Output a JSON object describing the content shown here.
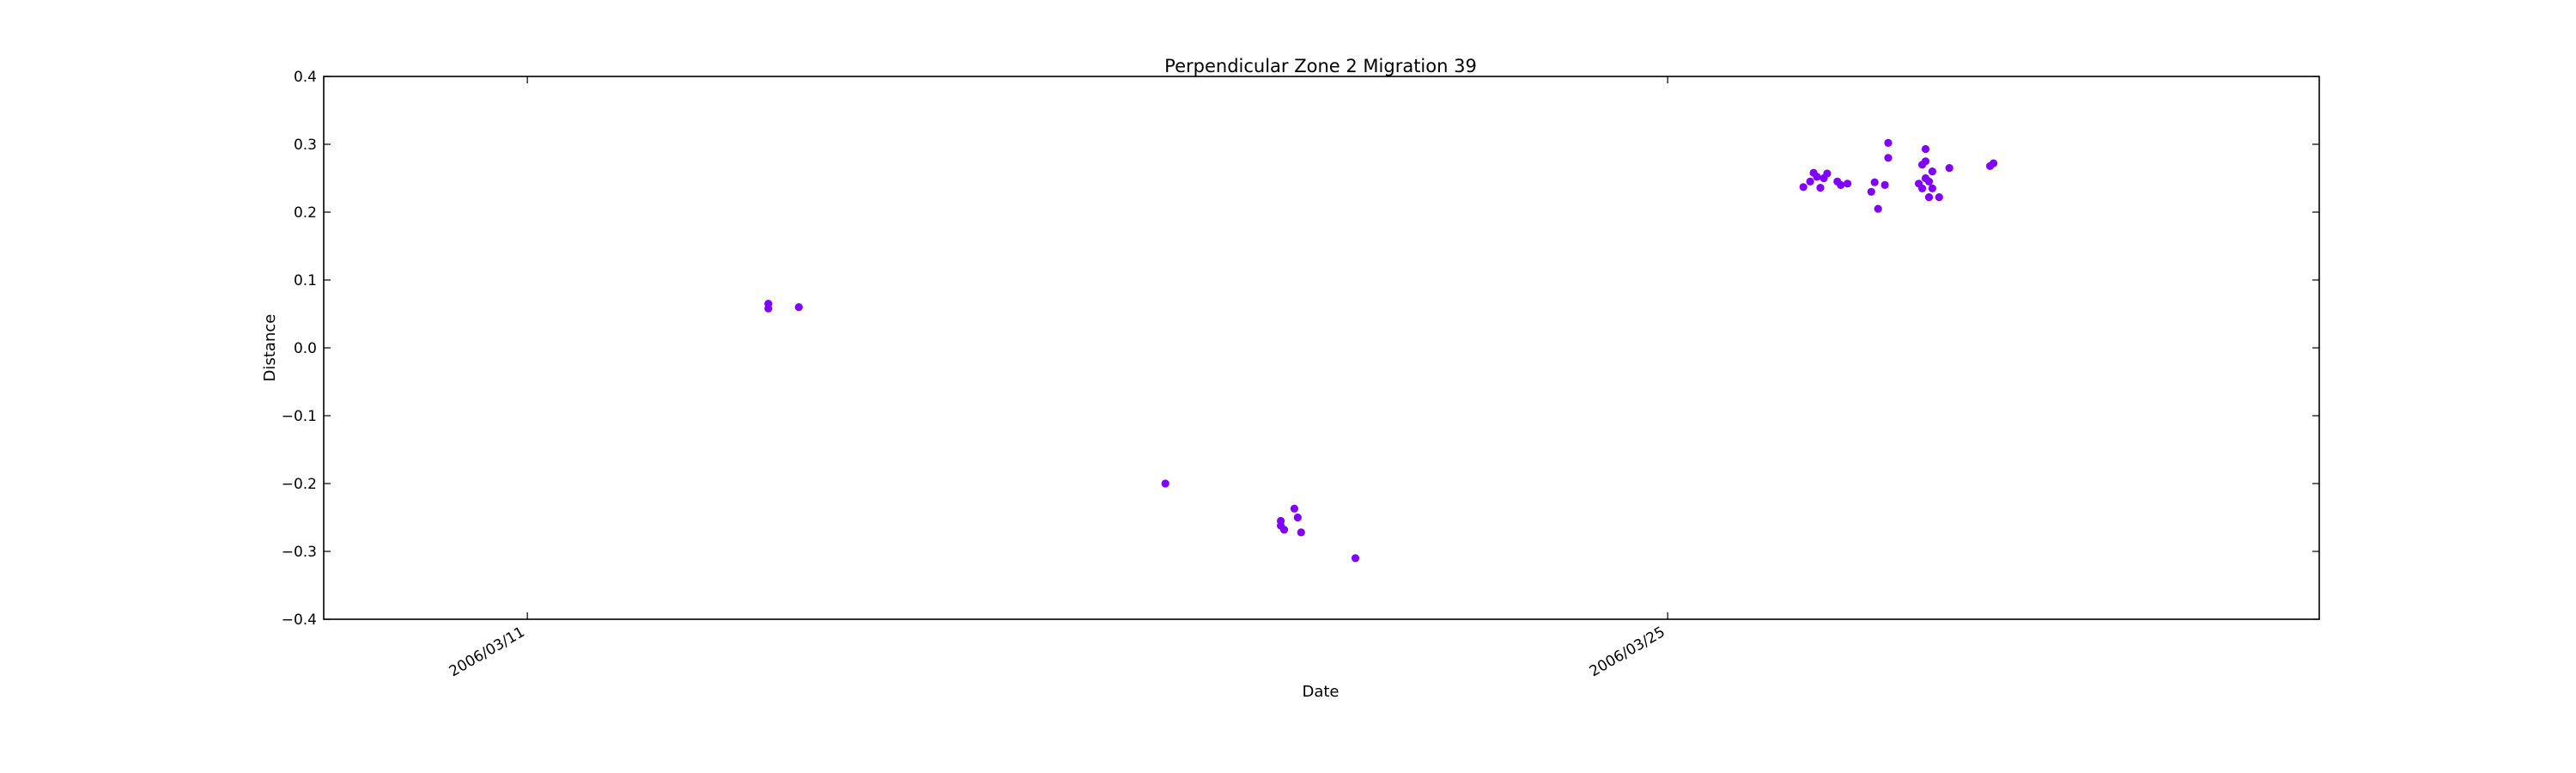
{
  "chart_data": {
    "type": "scatter",
    "title": "Perpendicular Zone 2 Migration 39",
    "xlabel": "Date",
    "ylabel": "Distance",
    "x_axis_type": "date",
    "xlim": [
      "2006-03-08 12:00",
      "2006-04-02 00:00"
    ],
    "ylim": [
      -0.4,
      0.4
    ],
    "x_ticks": [
      "2006-03-11",
      "2006-03-25"
    ],
    "x_tick_labels": [
      "2006/03/11",
      "2006/03/25"
    ],
    "y_ticks": [
      -0.4,
      -0.3,
      -0.2,
      -0.1,
      0.0,
      0.1,
      0.2,
      0.3,
      0.4
    ],
    "y_tick_labels": [
      "−0.4",
      "−0.3",
      "−0.2",
      "−0.1",
      "0.0",
      "0.1",
      "0.2",
      "0.3",
      "0.4"
    ],
    "grid": false,
    "marker_color": "#8000ff",
    "points": [
      {
        "x": "2006-03-13 23:00",
        "y": 0.065
      },
      {
        "x": "2006-03-13 23:00",
        "y": 0.058
      },
      {
        "x": "2006-03-14 08:00",
        "y": 0.06
      },
      {
        "x": "2006-03-18 20:00",
        "y": -0.2
      },
      {
        "x": "2006-03-20 06:00",
        "y": -0.255
      },
      {
        "x": "2006-03-20 06:00",
        "y": -0.262
      },
      {
        "x": "2006-03-20 07:00",
        "y": -0.268
      },
      {
        "x": "2006-03-20 10:00",
        "y": -0.237
      },
      {
        "x": "2006-03-20 11:00",
        "y": -0.25
      },
      {
        "x": "2006-03-20 12:00",
        "y": -0.272
      },
      {
        "x": "2006-03-21 04:00",
        "y": -0.31
      },
      {
        "x": "2006-03-26 16:00",
        "y": 0.237
      },
      {
        "x": "2006-03-26 18:00",
        "y": 0.245
      },
      {
        "x": "2006-03-26 19:00",
        "y": 0.258
      },
      {
        "x": "2006-03-26 20:00",
        "y": 0.252
      },
      {
        "x": "2006-03-26 21:00",
        "y": 0.236
      },
      {
        "x": "2006-03-26 22:00",
        "y": 0.25
      },
      {
        "x": "2006-03-26 23:00",
        "y": 0.257
      },
      {
        "x": "2006-03-27 02:00",
        "y": 0.245
      },
      {
        "x": "2006-03-27 03:00",
        "y": 0.24
      },
      {
        "x": "2006-03-27 05:00",
        "y": 0.242
      },
      {
        "x": "2006-03-27 12:00",
        "y": 0.23
      },
      {
        "x": "2006-03-27 13:00",
        "y": 0.244
      },
      {
        "x": "2006-03-27 16:00",
        "y": 0.24
      },
      {
        "x": "2006-03-27 14:00",
        "y": 0.205
      },
      {
        "x": "2006-03-27 17:00",
        "y": 0.28
      },
      {
        "x": "2006-03-27 17:00",
        "y": 0.302
      },
      {
        "x": "2006-03-28 02:00",
        "y": 0.242
      },
      {
        "x": "2006-03-28 03:00",
        "y": 0.235
      },
      {
        "x": "2006-03-28 04:00",
        "y": 0.25
      },
      {
        "x": "2006-03-28 03:00",
        "y": 0.27
      },
      {
        "x": "2006-03-28 04:00",
        "y": 0.275
      },
      {
        "x": "2006-03-28 04:00",
        "y": 0.293
      },
      {
        "x": "2006-03-28 05:00",
        "y": 0.245
      },
      {
        "x": "2006-03-28 05:00",
        "y": 0.222
      },
      {
        "x": "2006-03-28 06:00",
        "y": 0.26
      },
      {
        "x": "2006-03-28 06:00",
        "y": 0.235
      },
      {
        "x": "2006-03-28 08:00",
        "y": 0.222
      },
      {
        "x": "2006-03-28 11:00",
        "y": 0.265
      },
      {
        "x": "2006-03-28 23:00",
        "y": 0.268
      },
      {
        "x": "2006-03-29 00:00",
        "y": 0.272
      }
    ]
  }
}
